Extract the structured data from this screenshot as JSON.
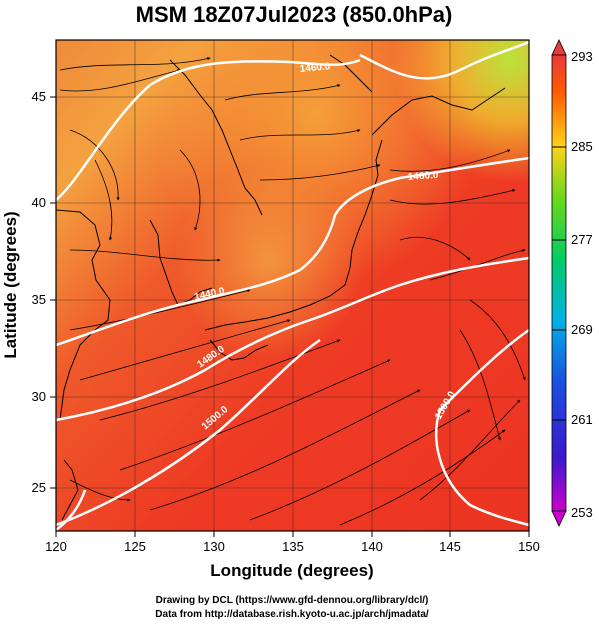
{
  "title": "MSM 18Z07Jul2023 (850.0hPa)",
  "map": {
    "xlabel": "Longitude (degrees)",
    "ylabel": "Latitude  (degrees)",
    "lon_range": [
      120,
      150
    ],
    "lat_range": [
      22.4,
      47.6
    ],
    "lon_ticks": [
      "120",
      "125",
      "130",
      "135",
      "140",
      "145",
      "150"
    ],
    "lat_ticks": [
      "25",
      "30",
      "35",
      "40",
      "45"
    ],
    "field": "temperature (K) shaded, geopotential height contours, wind streamlines",
    "contours": [
      {
        "label": "1440.0"
      },
      {
        "label": "1460.0"
      },
      {
        "label": "1480.0"
      },
      {
        "label": "1500.0"
      }
    ]
  },
  "colorbar": {
    "min": 253,
    "max": 293,
    "ticks": [
      "293",
      "285",
      "277",
      "269",
      "261",
      "253"
    ],
    "stops": [
      "#cc00cc",
      "#1a1acc",
      "#00b3e6",
      "#00cc66",
      "#66d91a",
      "#ffd21a",
      "#ff5a00",
      "#e83a3a"
    ]
  },
  "credits": {
    "line1": "Drawing by DCL (https://www.gfd-dennou.org/library/dcl/)",
    "line2": "Data from http://database.rish.kyoto-u.ac.jp/arch/jmadata/"
  }
}
